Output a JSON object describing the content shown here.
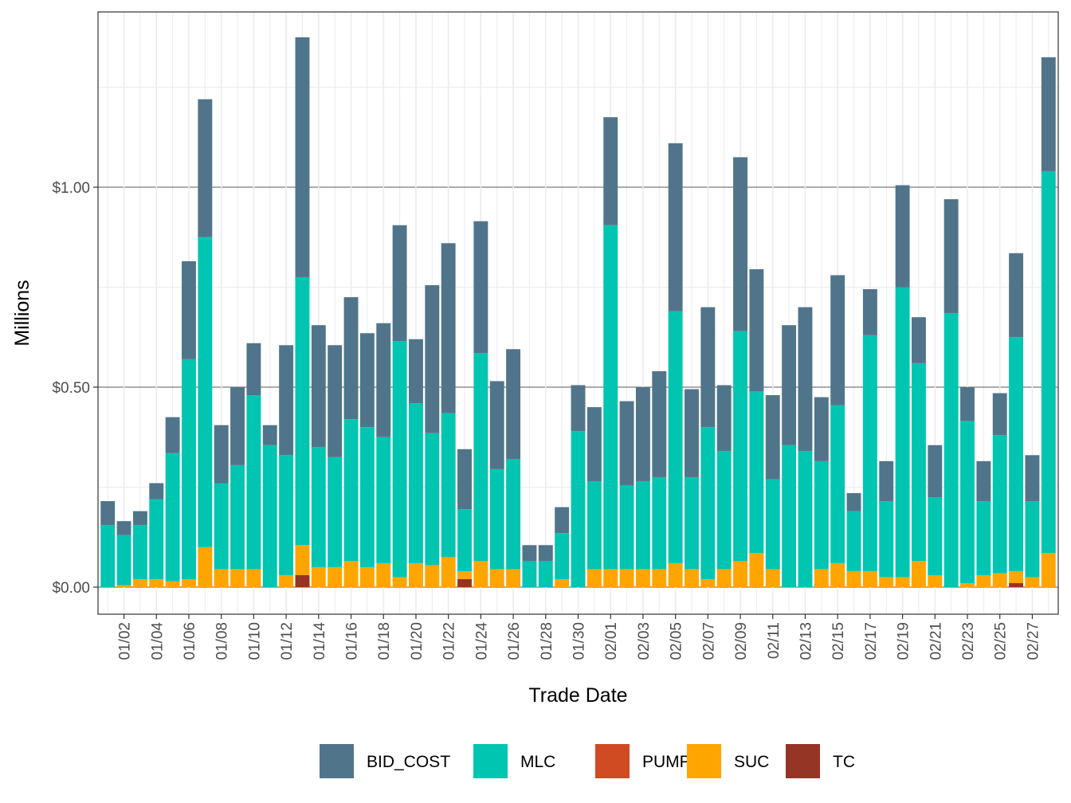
{
  "chart_data": {
    "type": "bar",
    "stacked": true,
    "xlabel": "Trade Date",
    "ylabel": "Millions",
    "ylim": [
      -0.07,
      1.44
    ],
    "y_ticks": [
      0,
      0.5,
      1.0
    ],
    "y_tick_labels": [
      "$0.00",
      "$0.50",
      "$1.00"
    ],
    "x_tick_labels": [
      "01/02",
      "01/04",
      "01/06",
      "01/08",
      "01/10",
      "01/12",
      "01/14",
      "01/16",
      "01/18",
      "01/20",
      "01/22",
      "01/24",
      "01/26",
      "01/28",
      "01/30",
      "02/01",
      "02/03",
      "02/05",
      "02/07",
      "02/09",
      "02/11",
      "02/13",
      "02/15",
      "02/17",
      "02/19",
      "02/21",
      "02/23",
      "02/25",
      "02/27"
    ],
    "legend_position": "bottom",
    "categories": [
      "01/01",
      "01/02",
      "01/03",
      "01/04",
      "01/05",
      "01/06",
      "01/07",
      "01/08",
      "01/09",
      "01/10",
      "01/11",
      "01/12",
      "01/13",
      "01/14",
      "01/15",
      "01/16",
      "01/17",
      "01/18",
      "01/19",
      "01/20",
      "01/21",
      "01/22",
      "01/23",
      "01/24",
      "01/25",
      "01/26",
      "01/27",
      "01/28",
      "01/29",
      "01/30",
      "01/31",
      "02/01",
      "02/02",
      "02/03",
      "02/04",
      "02/05",
      "02/06",
      "02/07",
      "02/08",
      "02/09",
      "02/10",
      "02/11",
      "02/12",
      "02/13",
      "02/14",
      "02/15",
      "02/16",
      "02/17",
      "02/18",
      "02/19",
      "02/20",
      "02/21",
      "02/22",
      "02/23",
      "02/24",
      "02/25",
      "02/26",
      "02/27",
      "02/28"
    ],
    "series": [
      {
        "name": "TC",
        "color": "#953525",
        "values": [
          0,
          0,
          0,
          0,
          0,
          0,
          0,
          0,
          0,
          0,
          0,
          0,
          0.03,
          0,
          0,
          0,
          0,
          0,
          0,
          0,
          0,
          0,
          0.02,
          0,
          0,
          0,
          0,
          0,
          0,
          0,
          0,
          0,
          0,
          0,
          0,
          0,
          0,
          0,
          0,
          0,
          0,
          0,
          0,
          0,
          0,
          0,
          0,
          0,
          0,
          0,
          0,
          0,
          0,
          0,
          0,
          0,
          0.01,
          0,
          0
        ]
      },
      {
        "name": "PUMP",
        "color": "#d04a22",
        "values": [
          0,
          0,
          0,
          0,
          0,
          0,
          0,
          0,
          0,
          0,
          0,
          0,
          0,
          0,
          0,
          0,
          0,
          0,
          0,
          0,
          0,
          0,
          0,
          0,
          0,
          0,
          0,
          0,
          0,
          0,
          0,
          0,
          0,
          0,
          0,
          0,
          0,
          0,
          0,
          0,
          0,
          0,
          0,
          0,
          0,
          0,
          0,
          0,
          0,
          0,
          0,
          0,
          0,
          0,
          0,
          0,
          0,
          0,
          0
        ]
      },
      {
        "name": "SUC",
        "color": "#ffa500",
        "values": [
          0,
          0.005,
          0.02,
          0.02,
          0.015,
          0.02,
          0.1,
          0.045,
          0.045,
          0.045,
          0,
          0.03,
          0.075,
          0.05,
          0.05,
          0.065,
          0.05,
          0.06,
          0.025,
          0.06,
          0.055,
          0.075,
          0.02,
          0.065,
          0.045,
          0.045,
          0,
          0,
          0.02,
          0,
          0.045,
          0.045,
          0.045,
          0.045,
          0.045,
          0.06,
          0.045,
          0.02,
          0.045,
          0.065,
          0.085,
          0.045,
          0,
          0,
          0.045,
          0.06,
          0.04,
          0.04,
          0.025,
          0.025,
          0.065,
          0.03,
          0,
          0.01,
          0.03,
          0.035,
          0.03,
          0.025,
          0.085
        ]
      },
      {
        "name": "MLC",
        "color": "#00c5b1",
        "values": [
          0.155,
          0.125,
          0.135,
          0.2,
          0.32,
          0.55,
          0.775,
          0.215,
          0.26,
          0.435,
          0.355,
          0.3,
          0.67,
          0.3,
          0.275,
          0.355,
          0.35,
          0.315,
          0.59,
          0.4,
          0.33,
          0.36,
          0.155,
          0.52,
          0.25,
          0.275,
          0.065,
          0.065,
          0.115,
          0.39,
          0.22,
          0.86,
          0.21,
          0.22,
          0.23,
          0.63,
          0.23,
          0.38,
          0.295,
          0.575,
          0.405,
          0.225,
          0.355,
          0.34,
          0.27,
          0.395,
          0.15,
          0.59,
          0.19,
          0.725,
          0.495,
          0.195,
          0.685,
          0.405,
          0.185,
          0.345,
          0.585,
          0.19,
          0.955
        ]
      },
      {
        "name": "BID_COST",
        "color": "#50758a",
        "values": [
          0.06,
          0.035,
          0.035,
          0.04,
          0.09,
          0.245,
          0.345,
          0.145,
          0.195,
          0.13,
          0.05,
          0.275,
          0.6,
          0.305,
          0.28,
          0.305,
          0.235,
          0.285,
          0.29,
          0.16,
          0.37,
          0.425,
          0.15,
          0.33,
          0.22,
          0.275,
          0.04,
          0.04,
          0.065,
          0.115,
          0.185,
          0.27,
          0.21,
          0.235,
          0.265,
          0.42,
          0.22,
          0.3,
          0.165,
          0.435,
          0.305,
          0.21,
          0.3,
          0.36,
          0.16,
          0.325,
          0.045,
          0.115,
          0.1,
          0.255,
          0.115,
          0.13,
          0.285,
          0.085,
          0.1,
          0.105,
          0.21,
          0.115,
          0.285
        ]
      }
    ],
    "legend": [
      {
        "name": "BID_COST",
        "color": "#50758a"
      },
      {
        "name": "MLC",
        "color": "#00c5b1"
      },
      {
        "name": "PUMP",
        "color": "#d04a22"
      },
      {
        "name": "SUC",
        "color": "#ffa500"
      },
      {
        "name": "TC",
        "color": "#953525"
      }
    ]
  }
}
